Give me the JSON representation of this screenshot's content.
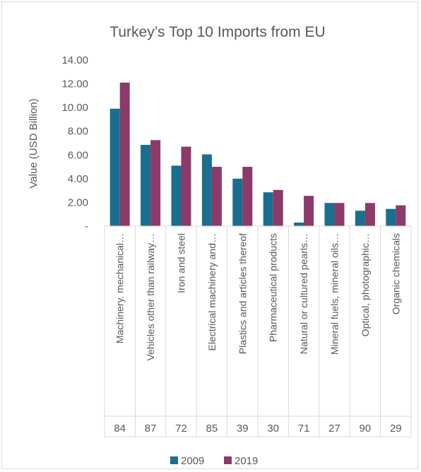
{
  "chart_data": {
    "type": "bar",
    "title": "Turkey’s Top 10 Imports from EU",
    "ylabel": "Value (USD Billion)",
    "xlabel": "",
    "ylim": [
      0,
      14
    ],
    "yticks": [
      {
        "value": 0,
        "label": "-"
      },
      {
        "value": 2,
        "label": "2.00"
      },
      {
        "value": 4,
        "label": "4.00"
      },
      {
        "value": 6,
        "label": "6.00"
      },
      {
        "value": 8,
        "label": "8.00"
      },
      {
        "value": 10,
        "label": "10.00"
      },
      {
        "value": 12,
        "label": "12.00"
      },
      {
        "value": 14,
        "label": "14.00"
      }
    ],
    "grid": false,
    "legend_position": "bottom",
    "categories": [
      "Machinery. mechanical…",
      "Vehicles other than railway…",
      "Iron and steel",
      "Electrical machinery and…",
      "Plastics and articles thereof",
      "Pharmaceutical products",
      "Natural or cultured pearls…",
      "Mineral fuels, mineral oils…",
      "Optical, photographic…",
      "Organic chemicals"
    ],
    "codes": [
      "84",
      "87",
      "72",
      "85",
      "39",
      "30",
      "71",
      "27",
      "90",
      "29"
    ],
    "series": [
      {
        "name": "2009",
        "color": "#1a6e8e",
        "values": [
          9.9,
          6.85,
          5.1,
          6.05,
          4.0,
          2.85,
          0.3,
          1.95,
          1.3,
          1.45
        ]
      },
      {
        "name": "2019",
        "color": "#8b3a6a",
        "values": [
          12.1,
          7.25,
          6.7,
          5.0,
          5.0,
          3.05,
          2.55,
          1.95,
          1.95,
          1.75
        ]
      }
    ]
  }
}
